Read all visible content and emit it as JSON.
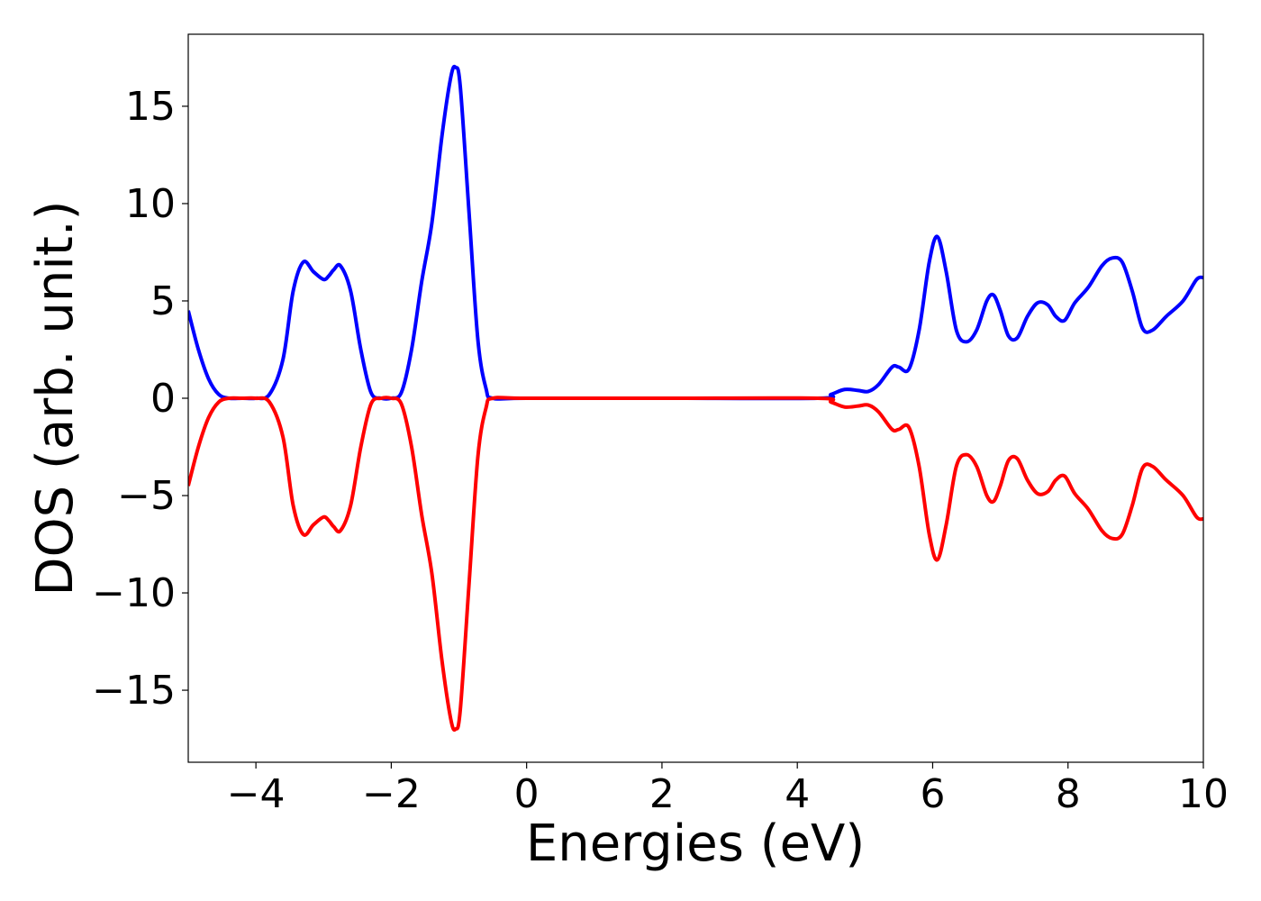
{
  "chart_data": {
    "type": "line",
    "title": "",
    "xlabel": "Energies (eV)",
    "ylabel": "DOS (arb. unit.)",
    "xlim": [
      -5,
      10
    ],
    "ylim": [
      -18.7,
      18.7
    ],
    "grid": false,
    "legend": "none",
    "x_ticks": [
      -4,
      -2,
      0,
      2,
      4,
      6,
      8,
      10
    ],
    "x_tick_labels": [
      "−4",
      "−2",
      "0",
      "2",
      "4",
      "6",
      "8",
      "10"
    ],
    "y_ticks": [
      -15,
      -10,
      -5,
      0,
      5,
      10,
      15
    ],
    "y_tick_labels": [
      "−15",
      "−10",
      "−5",
      "0",
      "5",
      "10",
      "15"
    ],
    "series": [
      {
        "color": "#0000ff",
        "x": [
          -5.0,
          -4.85,
          -4.7,
          -4.55,
          -4.4,
          -4.2,
          -4.0,
          -3.8,
          -3.6,
          -3.45,
          -3.3,
          -3.15,
          -3.0,
          -2.92,
          -2.85,
          -2.75,
          -2.6,
          -2.45,
          -2.3,
          -2.15,
          -2.0,
          -1.85,
          -1.7,
          -1.55,
          -1.4,
          -1.25,
          -1.12,
          -1.05,
          -0.98,
          -0.85,
          -0.72,
          -0.6,
          -0.5,
          0,
          2,
          4.3,
          4.5,
          4.7,
          4.9,
          5.05,
          5.2,
          5.4,
          5.5,
          5.65,
          5.8,
          5.95,
          6.07,
          6.2,
          6.35,
          6.5,
          6.65,
          6.8,
          6.9,
          7.0,
          7.12,
          7.25,
          7.4,
          7.55,
          7.7,
          7.82,
          7.95,
          8.1,
          8.3,
          8.5,
          8.65,
          8.8,
          8.95,
          9.1,
          9.25,
          9.45,
          9.7,
          9.9,
          10.0
        ],
        "values": [
          4.5,
          2.5,
          1.0,
          0.2,
          0.0,
          0.0,
          0.0,
          0.2,
          2.0,
          5.5,
          7.0,
          6.5,
          6.1,
          6.3,
          6.6,
          6.8,
          5.5,
          2.5,
          0.3,
          0.0,
          0.0,
          0.3,
          2.5,
          6.0,
          9.0,
          13.5,
          16.5,
          17.0,
          16.0,
          9.5,
          3.0,
          0.5,
          0.0,
          0.0,
          0.0,
          0.0,
          0.2,
          0.45,
          0.4,
          0.35,
          0.7,
          1.6,
          1.6,
          1.5,
          3.5,
          7.0,
          8.3,
          6.5,
          3.5,
          2.9,
          3.5,
          5.0,
          5.3,
          4.5,
          3.2,
          3.1,
          4.2,
          4.9,
          4.8,
          4.2,
          4.0,
          4.9,
          5.7,
          6.8,
          7.2,
          7.0,
          5.5,
          3.6,
          3.5,
          4.2,
          5.0,
          6.1,
          6.2
        ]
      },
      {
        "color": "#ff0000",
        "x": [
          -5.0,
          -4.85,
          -4.7,
          -4.55,
          -4.4,
          -4.2,
          -4.0,
          -3.8,
          -3.6,
          -3.45,
          -3.3,
          -3.15,
          -3.0,
          -2.92,
          -2.85,
          -2.75,
          -2.6,
          -2.45,
          -2.3,
          -2.15,
          -2.0,
          -1.85,
          -1.7,
          -1.55,
          -1.4,
          -1.25,
          -1.12,
          -1.05,
          -0.98,
          -0.85,
          -0.72,
          -0.6,
          -0.5,
          0,
          2,
          4.3,
          4.5,
          4.7,
          4.9,
          5.05,
          5.2,
          5.4,
          5.5,
          5.65,
          5.8,
          5.95,
          6.07,
          6.2,
          6.35,
          6.5,
          6.65,
          6.8,
          6.9,
          7.0,
          7.12,
          7.25,
          7.4,
          7.55,
          7.7,
          7.82,
          7.95,
          8.1,
          8.3,
          8.5,
          8.65,
          8.8,
          8.95,
          9.1,
          9.25,
          9.45,
          9.7,
          9.9,
          10.0
        ],
        "values": [
          -4.5,
          -2.5,
          -1.0,
          -0.2,
          0.0,
          0.0,
          0.0,
          -0.2,
          -2.0,
          -5.5,
          -7.0,
          -6.5,
          -6.1,
          -6.3,
          -6.6,
          -6.8,
          -5.5,
          -2.5,
          -0.3,
          0.0,
          0.0,
          -0.3,
          -2.5,
          -6.0,
          -9.0,
          -13.5,
          -16.5,
          -17.0,
          -16.0,
          -9.5,
          -3.0,
          -0.5,
          0.0,
          0.0,
          0.0,
          0.0,
          -0.2,
          -0.45,
          -0.4,
          -0.35,
          -0.7,
          -1.6,
          -1.6,
          -1.5,
          -3.5,
          -7.0,
          -8.3,
          -6.5,
          -3.5,
          -2.9,
          -3.5,
          -5.0,
          -5.3,
          -4.5,
          -3.2,
          -3.1,
          -4.2,
          -4.9,
          -4.8,
          -4.2,
          -4.0,
          -4.9,
          -5.7,
          -6.8,
          -7.2,
          -7.0,
          -5.5,
          -3.6,
          -3.5,
          -4.2,
          -5.0,
          -6.1,
          -6.2
        ]
      }
    ]
  }
}
